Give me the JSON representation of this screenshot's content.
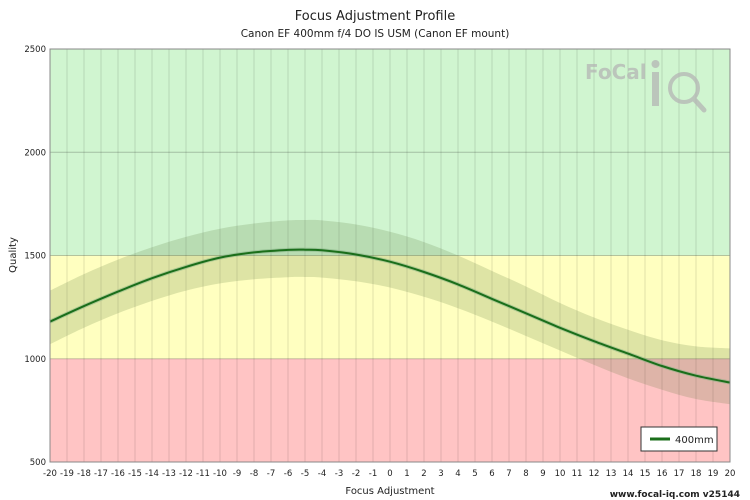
{
  "chart_data": {
    "type": "line",
    "title": "Focus Adjustment Profile",
    "subtitle": "Canon EF 400mm f/4 DO IS USM (Canon EF mount)",
    "xlabel": "Focus Adjustment",
    "ylabel": "Quality",
    "xlim": [
      -20,
      20
    ],
    "ylim": [
      500,
      2500
    ],
    "x_ticks": [
      -20,
      -19,
      -18,
      -17,
      -16,
      -15,
      -14,
      -13,
      -12,
      -11,
      -10,
      -9,
      -8,
      -7,
      -6,
      -5,
      -4,
      -3,
      -2,
      -1,
      0,
      1,
      2,
      3,
      4,
      5,
      6,
      7,
      8,
      9,
      10,
      11,
      12,
      13,
      14,
      15,
      16,
      17,
      18,
      19,
      20
    ],
    "y_ticks": [
      500,
      1000,
      1500,
      2000,
      2500
    ],
    "bands": [
      {
        "from": 500,
        "to": 1000,
        "color": "#ffc4c4"
      },
      {
        "from": 1000,
        "to": 1500,
        "color": "#ffffc0"
      },
      {
        "from": 1500,
        "to": 2500,
        "color": "#d0f5d0"
      }
    ],
    "grid": true,
    "legend_position": "bottom-right",
    "series": [
      {
        "name": "400mm",
        "color": "#1a6e1a",
        "x": [
          -20,
          -18,
          -16,
          -14,
          -12,
          -10,
          -8,
          -6,
          -5,
          -4,
          -2,
          0,
          2,
          4,
          6,
          8,
          10,
          12,
          14,
          16,
          18,
          20
        ],
        "y": [
          1180,
          1255,
          1325,
          1390,
          1445,
          1490,
          1515,
          1527,
          1528,
          1525,
          1505,
          1470,
          1420,
          1360,
          1290,
          1220,
          1150,
          1085,
          1025,
          965,
          918,
          885
        ],
        "upper": [
          1330,
          1410,
          1480,
          1540,
          1590,
          1630,
          1655,
          1670,
          1672,
          1670,
          1650,
          1615,
          1565,
          1500,
          1425,
          1350,
          1270,
          1200,
          1140,
          1090,
          1060,
          1050
        ],
        "lower": [
          1070,
          1150,
          1220,
          1280,
          1330,
          1365,
          1385,
          1395,
          1396,
          1393,
          1375,
          1345,
          1300,
          1245,
          1180,
          1110,
          1040,
          970,
          905,
          850,
          805,
          780
        ]
      }
    ]
  },
  "watermark": {
    "text": "www.focal-iq.com  v25144"
  },
  "logo": {
    "text": "FoCal iQ"
  }
}
